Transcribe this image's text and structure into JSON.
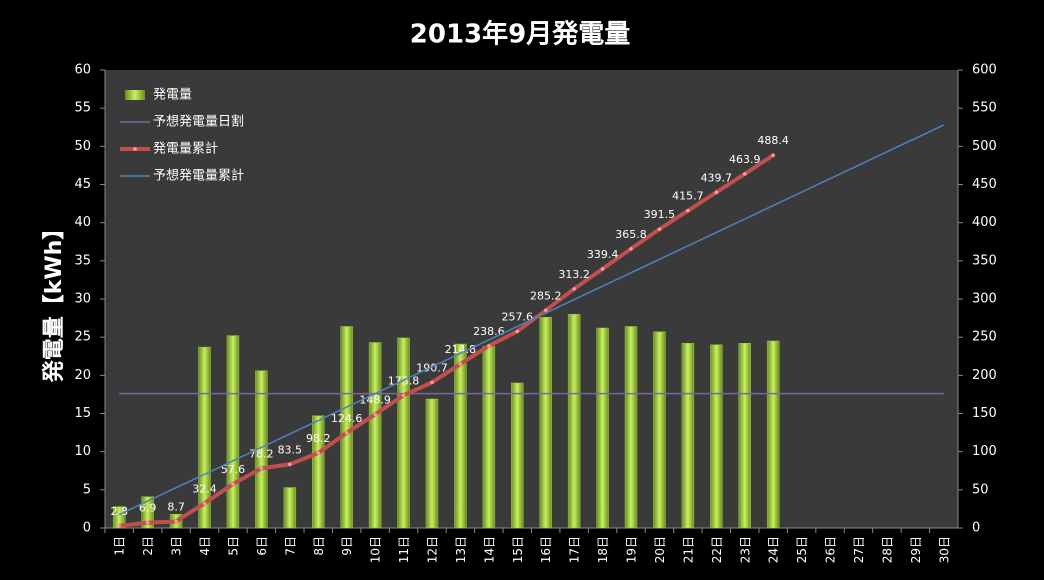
{
  "chart_data": {
    "type": "combo",
    "title": "2013年9月発電量",
    "ylabel": "発電量【kWh】",
    "categories": [
      "1日",
      "2日",
      "3日",
      "4日",
      "5日",
      "6日",
      "7日",
      "8日",
      "9日",
      "10日",
      "11日",
      "12日",
      "13日",
      "14日",
      "15日",
      "16日",
      "17日",
      "18日",
      "19日",
      "20日",
      "21日",
      "22日",
      "23日",
      "24日",
      "25日",
      "26日",
      "27日",
      "28日",
      "29日",
      "30日"
    ],
    "ylim": [
      0,
      60
    ],
    "yticks": [
      0,
      5,
      10,
      15,
      20,
      25,
      30,
      35,
      40,
      45,
      50,
      55,
      60
    ],
    "y2lim": [
      0,
      600
    ],
    "y2ticks": [
      0,
      50,
      100,
      150,
      200,
      250,
      300,
      350,
      400,
      450,
      500,
      550,
      600
    ],
    "grid": false,
    "legend": "upper left",
    "series": [
      {
        "name": "発電量",
        "type": "bar",
        "color": "#9acd32",
        "values": [
          2.8,
          4.1,
          1.8,
          23.7,
          25.2,
          20.6,
          5.3,
          14.7,
          26.4,
          24.3,
          24.9,
          16.9,
          24.1,
          23.8,
          19.0,
          27.6,
          28.0,
          26.2,
          26.4,
          25.7,
          24.2,
          24.0,
          24.2,
          24.5,
          null,
          null,
          null,
          null,
          null,
          null
        ]
      },
      {
        "name": "予想発電量日割",
        "type": "line",
        "color": "#8064a2",
        "values": [
          17.6,
          17.6,
          17.6,
          17.6,
          17.6,
          17.6,
          17.6,
          17.6,
          17.6,
          17.6,
          17.6,
          17.6,
          17.6,
          17.6,
          17.6,
          17.6,
          17.6,
          17.6,
          17.6,
          17.6,
          17.6,
          17.6,
          17.6,
          17.6,
          17.6,
          17.6,
          17.6,
          17.6,
          17.6,
          17.6
        ]
      },
      {
        "name": "発電量累計",
        "type": "line",
        "axis": "y2",
        "color": "#c0504d",
        "markers": true,
        "labels": true,
        "values": [
          2.8,
          6.9,
          8.7,
          32.4,
          57.6,
          78.2,
          83.5,
          98.2,
          124.6,
          148.9,
          173.8,
          190.7,
          214.8,
          238.6,
          257.6,
          285.2,
          313.2,
          339.4,
          365.8,
          391.5,
          415.7,
          439.7,
          463.9,
          488.4,
          null,
          null,
          null,
          null,
          null,
          null
        ]
      },
      {
        "name": "予想発電量累計",
        "type": "line",
        "axis": "y2",
        "color": "#4f81bd",
        "values": [
          17.6,
          35.2,
          52.8,
          70.4,
          88,
          105.6,
          123.2,
          140.8,
          158.4,
          176,
          193.6,
          211.2,
          228.8,
          246.4,
          264,
          281.6,
          299.2,
          316.8,
          334.4,
          352,
          369.6,
          387.2,
          404.8,
          422.4,
          440,
          457.6,
          475.2,
          492.8,
          510.4,
          528
        ]
      }
    ]
  }
}
